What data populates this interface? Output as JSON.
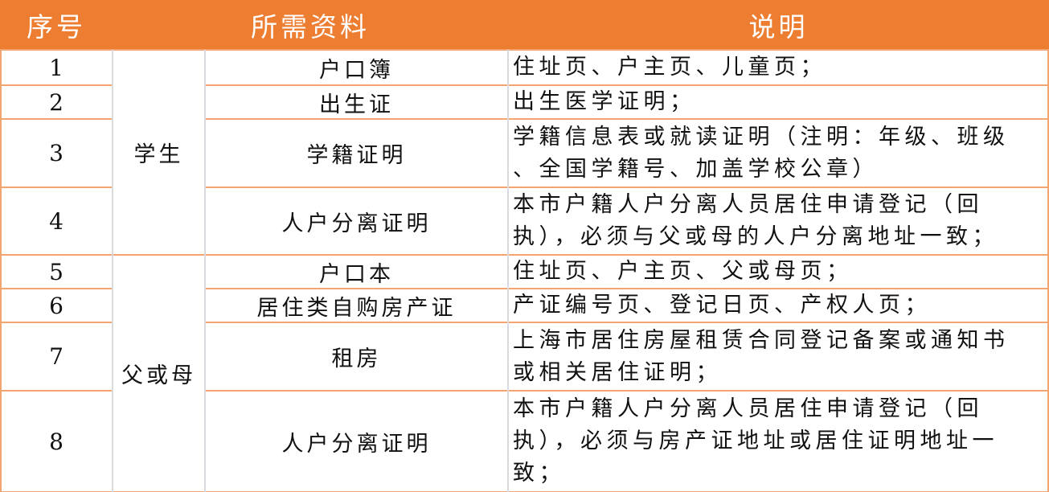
{
  "colors": {
    "header_bg": "#ED7D31",
    "header_text": "#FFFFFF",
    "row_border": "#F4A46E",
    "column_border": "#D9D9DE"
  },
  "header": {
    "index": "序号",
    "material": "所需资料",
    "note": "说明"
  },
  "groups": [
    {
      "label": "学生"
    },
    {
      "label": "父或母"
    }
  ],
  "rows": [
    {
      "index": "1",
      "material": "户口簿",
      "note_lines": [
        "住址页、户主页、儿童页；"
      ]
    },
    {
      "index": "2",
      "material": "出生证",
      "note_lines": [
        "出生医学证明；"
      ]
    },
    {
      "index": "3",
      "material": "学籍证明",
      "note_lines": [
        "学籍信息表或就读证明（注明：年级、班级",
        "、全国学籍号、加盖学校公章）"
      ]
    },
    {
      "index": "4",
      "material": "人户分离证明",
      "note_lines": [
        "本市户籍人户分离人员居住申请登记（回",
        "执），必须与父或母的人户分离地址一致；"
      ]
    },
    {
      "index": "5",
      "material": "户口本",
      "note_lines": [
        "住址页、户主页、父或母页；"
      ]
    },
    {
      "index": "6",
      "material": "居住类自购房产证",
      "note_lines": [
        "产证编号页、登记日页、产权人页；"
      ]
    },
    {
      "index": "7",
      "material": "租房",
      "note_lines": [
        "上海市居住房屋租赁合同登记备案或通知书",
        "或相关居住证明；"
      ]
    },
    {
      "index": "8",
      "material": "人户分离证明",
      "note_lines": [
        "本市户籍人户分离人员居住申请登记（回",
        "执），必须与房产证地址或居住证明地址一",
        "致；"
      ]
    }
  ]
}
